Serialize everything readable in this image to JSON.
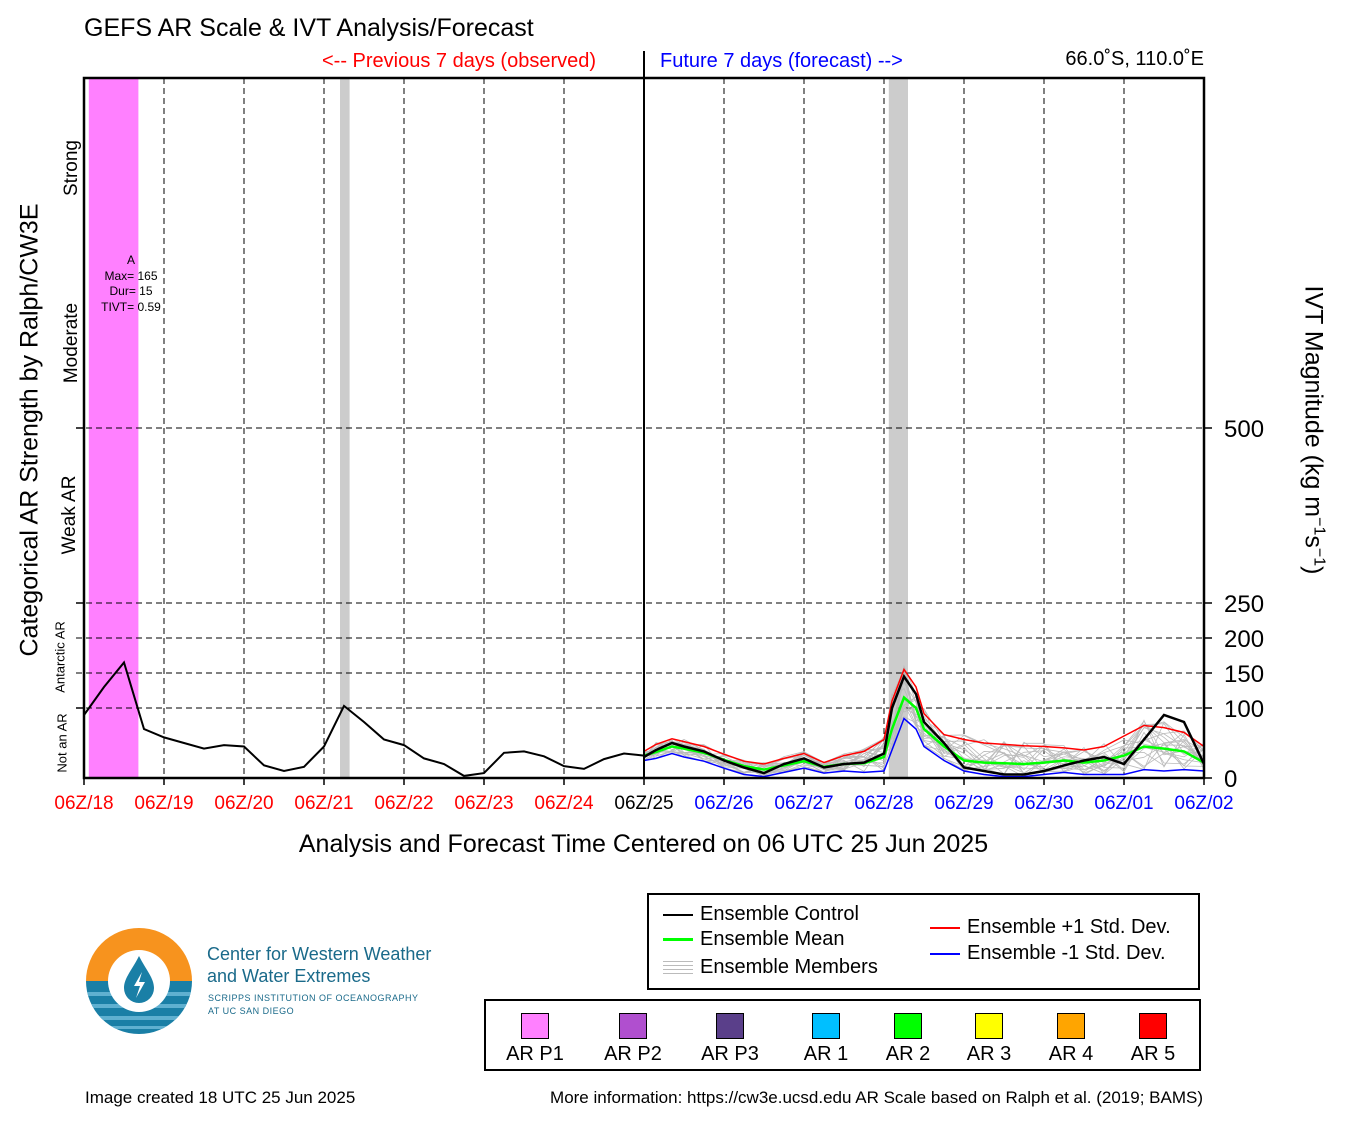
{
  "header": {
    "title": "GEFS AR Scale & IVT Analysis/Forecast",
    "previous_label": "<-- Previous 7 days (observed)",
    "future_label": "Future 7 days (forecast) -->",
    "location": "66.0˚S, 110.0˚E"
  },
  "axes": {
    "x_title": "Analysis and Forecast Time Centered on 06 UTC 25 Jun 2025",
    "y_left_title": "Categorical AR Strength by Ralph/CW3E",
    "y_right_title_main": "IVT Magnitude (kg m",
    "y_right_sup1": "−1",
    "y_right_mid": "s",
    "y_right_sup2": "−1",
    "y_right_close": ")",
    "categories": [
      "Strong",
      "Moderate",
      "Weak AR",
      "Antarctic AR",
      "Not an AR"
    ]
  },
  "annotation": {
    "line1": "A",
    "line2": "Max= 165",
    "line3": "Dur= 15",
    "line4": "TIVT= 0.59"
  },
  "legend": {
    "control": "Ensemble Control",
    "mean": "Ensemble Mean",
    "members": "Ensemble Members",
    "plus_std": "Ensemble +1 Std. Dev.",
    "minus_std": "Ensemble -1 Std. Dev."
  },
  "categories_legend": [
    {
      "label": "AR P1",
      "color": "#ff80ff"
    },
    {
      "label": "AR P2",
      "color": "#b04fcf"
    },
    {
      "label": "AR P3",
      "color": "#5a3f8a"
    },
    {
      "label": "AR 1",
      "color": "#00bfff"
    },
    {
      "label": "AR 2",
      "color": "#00ff00"
    },
    {
      "label": "AR 3",
      "color": "#ffff00"
    },
    {
      "label": "AR 4",
      "color": "#ffa500"
    },
    {
      "label": "AR 5",
      "color": "#ff0000"
    }
  ],
  "logo": {
    "line1": "Center for Western Weather",
    "line2": "and Water Extremes",
    "line3": "SCRIPPS INSTITUTION OF OCEANOGRAPHY",
    "line4": "AT UC SAN DIEGO"
  },
  "footer": {
    "created": "Image created 18 UTC 25 Jun 2025",
    "info": "More information: https://cw3e.ucsd.edu AR Scale based on Ralph et al. (2019; BAMS)"
  },
  "colors": {
    "observed": "#ff0000",
    "forecast": "#0000ff",
    "control": "#000000",
    "mean": "#00ff00",
    "plus_std": "#ff0000",
    "minus_std": "#0000ff",
    "members": "#bbbbbb",
    "ar_p1_shade": "#ff80ff",
    "gray_shade": "#cccccc"
  },
  "chart_data": {
    "type": "line",
    "x_unit": "days since 06Z/18 Jun 2025",
    "x_ticks": [
      {
        "x": 0,
        "label": "06Z/18",
        "period": "observed"
      },
      {
        "x": 1,
        "label": "06Z/19",
        "period": "observed"
      },
      {
        "x": 2,
        "label": "06Z/20",
        "period": "observed"
      },
      {
        "x": 3,
        "label": "06Z/21",
        "period": "observed"
      },
      {
        "x": 4,
        "label": "06Z/22",
        "period": "observed"
      },
      {
        "x": 5,
        "label": "06Z/23",
        "period": "observed"
      },
      {
        "x": 6,
        "label": "06Z/24",
        "period": "observed"
      },
      {
        "x": 7,
        "label": "06Z/25",
        "period": "now"
      },
      {
        "x": 8,
        "label": "06Z/26",
        "period": "forecast"
      },
      {
        "x": 9,
        "label": "06Z/27",
        "period": "forecast"
      },
      {
        "x": 10,
        "label": "06Z/28",
        "period": "forecast"
      },
      {
        "x": 11,
        "label": "06Z/29",
        "period": "forecast"
      },
      {
        "x": 12,
        "label": "06Z/30",
        "period": "forecast"
      },
      {
        "x": 13,
        "label": "06Z/01",
        "period": "forecast"
      },
      {
        "x": 14,
        "label": "06Z/02",
        "period": "forecast"
      }
    ],
    "xlim": [
      0,
      14
    ],
    "right_ticks": [
      0,
      100,
      150,
      200,
      250,
      500
    ],
    "y_breakpoints": [
      {
        "ivt": 0,
        "frac": 0
      },
      {
        "ivt": 100,
        "frac": 0.1
      },
      {
        "ivt": 250,
        "frac": 0.25
      },
      {
        "ivt": 500,
        "frac": 0.5
      },
      {
        "ivt": 1000,
        "frac": 1.0
      }
    ],
    "category_thresholds_ivt": [
      100,
      250,
      500
    ],
    "grid": "dashed",
    "shading": [
      {
        "x0": 0.06,
        "x1": 0.68,
        "kind": "AR P1"
      },
      {
        "x0": 3.2,
        "x1": 3.32,
        "kind": "gray"
      },
      {
        "x0": 10.06,
        "x1": 10.3,
        "kind": "gray"
      }
    ],
    "observed_series": {
      "name": "observed",
      "x": [
        0,
        0.25,
        0.5,
        0.75,
        1,
        1.25,
        1.5,
        1.75,
        2,
        2.25,
        2.5,
        2.75,
        3,
        3.25,
        3.5,
        3.75,
        4,
        4.25,
        4.5,
        4.75,
        5,
        5.25,
        5.5,
        5.75,
        6,
        6.25,
        6.5,
        6.75,
        7
      ],
      "y": [
        90,
        130,
        165,
        70,
        58,
        50,
        42,
        47,
        45,
        18,
        10,
        16,
        45,
        103,
        80,
        55,
        47,
        28,
        20,
        3,
        7,
        36,
        38,
        31,
        17,
        13,
        27,
        35,
        32
      ]
    },
    "series": [
      {
        "name": "Ensemble Control",
        "x": [
          7,
          7.15,
          7.35,
          7.5,
          7.75,
          8,
          8.25,
          8.5,
          8.75,
          9,
          9.25,
          9.5,
          9.75,
          10,
          10.1,
          10.25,
          10.4,
          10.5,
          10.75,
          11,
          11.25,
          11.5,
          11.75,
          12,
          12.25,
          12.5,
          12.75,
          13,
          13.25,
          13.5,
          13.75,
          14
        ],
        "y": [
          30,
          40,
          50,
          45,
          38,
          25,
          15,
          7,
          20,
          28,
          15,
          20,
          22,
          35,
          100,
          145,
          120,
          80,
          50,
          15,
          10,
          5,
          5,
          10,
          18,
          25,
          30,
          20,
          55,
          90,
          80,
          20
        ]
      },
      {
        "name": "Ensemble Mean",
        "x": [
          7,
          7.15,
          7.35,
          7.5,
          7.75,
          8,
          8.25,
          8.5,
          8.75,
          9,
          9.25,
          9.5,
          9.75,
          10,
          10.1,
          10.25,
          10.4,
          10.5,
          10.75,
          11,
          11.25,
          11.5,
          11.75,
          12,
          12.25,
          12.5,
          12.75,
          13,
          13.25,
          13.5,
          13.75,
          14
        ],
        "y": [
          32,
          37,
          45,
          42,
          36,
          26,
          17,
          12,
          18,
          24,
          16,
          20,
          21,
          30,
          70,
          115,
          100,
          70,
          45,
          25,
          22,
          21,
          20,
          22,
          25,
          22,
          25,
          32,
          45,
          42,
          38,
          22
        ]
      },
      {
        "name": "Ensemble +1 Std. Dev.",
        "x": [
          7,
          7.15,
          7.35,
          7.5,
          7.75,
          8,
          8.25,
          8.5,
          8.75,
          9,
          9.25,
          9.5,
          9.75,
          10,
          10.1,
          10.25,
          10.4,
          10.5,
          10.75,
          11,
          11.25,
          11.5,
          11.75,
          12,
          12.25,
          12.5,
          12.75,
          13,
          13.25,
          13.5,
          13.75,
          14
        ],
        "y": [
          38,
          48,
          56,
          52,
          45,
          34,
          24,
          20,
          28,
          35,
          22,
          32,
          38,
          55,
          110,
          155,
          130,
          92,
          62,
          55,
          50,
          48,
          46,
          45,
          43,
          40,
          45,
          60,
          75,
          72,
          65,
          45
        ]
      },
      {
        "name": "Ensemble -1 Std. Dev.",
        "x": [
          7,
          7.15,
          7.35,
          7.5,
          7.75,
          8,
          8.25,
          8.5,
          8.75,
          9,
          9.25,
          9.5,
          9.75,
          10,
          10.1,
          10.25,
          10.4,
          10.5,
          10.75,
          11,
          11.25,
          11.5,
          11.75,
          12,
          12.25,
          12.5,
          12.75,
          13,
          13.25,
          13.5,
          13.75,
          14
        ],
        "y": [
          25,
          28,
          35,
          30,
          24,
          14,
          5,
          2,
          8,
          14,
          7,
          10,
          8,
          10,
          40,
          85,
          70,
          45,
          25,
          10,
          5,
          2,
          2,
          5,
          8,
          5,
          5,
          5,
          12,
          10,
          12,
          10
        ]
      }
    ]
  }
}
